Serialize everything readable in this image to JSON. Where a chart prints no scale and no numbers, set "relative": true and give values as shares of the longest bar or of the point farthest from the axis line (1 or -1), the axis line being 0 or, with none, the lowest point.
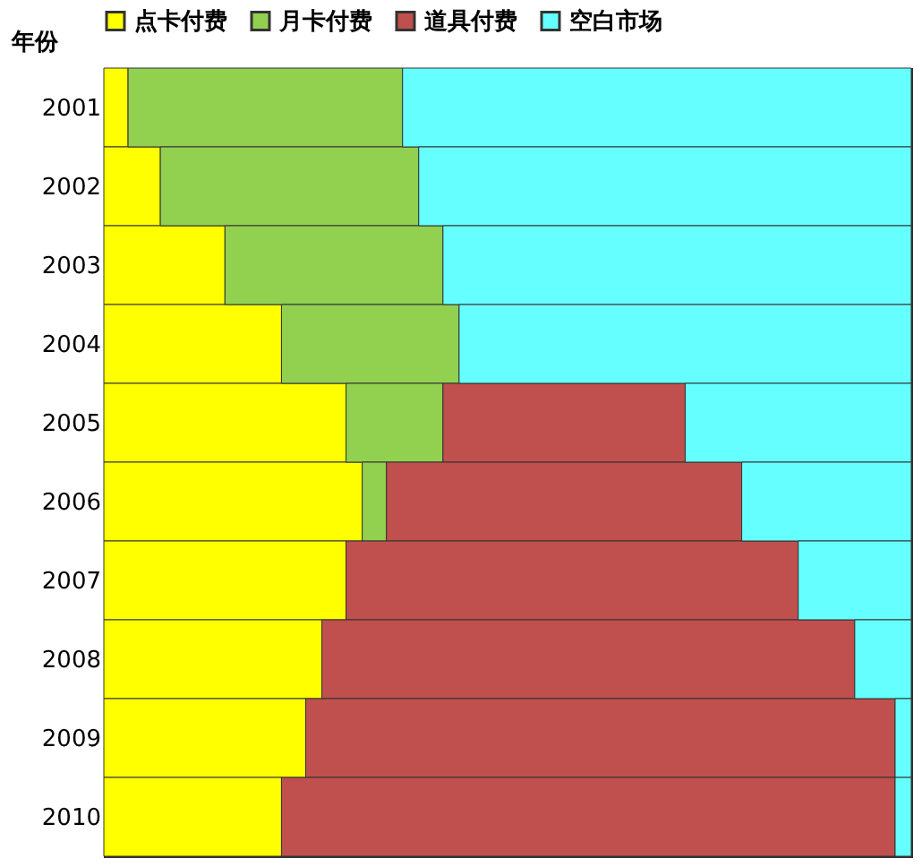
{
  "chart_data": {
    "type": "bar",
    "orientation": "horizontal",
    "stacked": true,
    "relative": true,
    "ylabel": "年份",
    "categories": [
      "2001",
      "2002",
      "2003",
      "2004",
      "2005",
      "2006",
      "2007",
      "2008",
      "2009",
      "2010"
    ],
    "series": [
      {
        "name": "点卡付费",
        "color": "#ffff00",
        "values": [
          0.03,
          0.07,
          0.15,
          0.22,
          0.3,
          0.32,
          0.3,
          0.27,
          0.25,
          0.22
        ]
      },
      {
        "name": "月卡付费",
        "color": "#92d050",
        "values": [
          0.34,
          0.32,
          0.27,
          0.22,
          0.12,
          0.03,
          0,
          0,
          0,
          0
        ]
      },
      {
        "name": "道具付费",
        "color": "#c0504d",
        "values": [
          0,
          0,
          0,
          0,
          0.3,
          0.44,
          0.56,
          0.66,
          0.73,
          0.76
        ]
      },
      {
        "name": "空白市场",
        "color": "#66ffff",
        "values": [
          0.63,
          0.61,
          0.58,
          0.56,
          0.28,
          0.21,
          0.14,
          0.07,
          0.02,
          0.02
        ]
      }
    ],
    "legend": "top",
    "grid": false
  }
}
